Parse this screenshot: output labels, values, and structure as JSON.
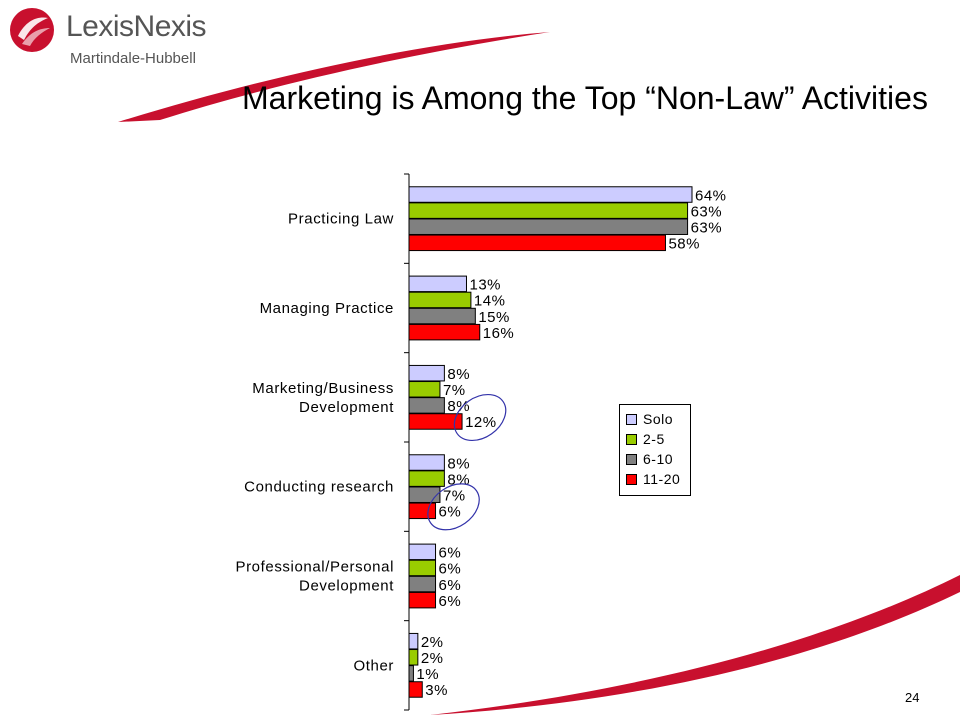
{
  "header": {
    "logo_name": "LexisNexis",
    "logo_sub": "Martindale-Hubbell",
    "logo_mark_icon": "lexisnexis-logo-icon",
    "title": "Marketing is Among the Top “Non-Law” Activities"
  },
  "colors": {
    "brand_red": "#c8102e",
    "solo": "#ccccff",
    "two_to_five": "#99cc00",
    "six_to_ten": "#808080",
    "eleven_to_twenty": "#ff0000",
    "highlight": "#3333aa"
  },
  "chart_data": {
    "type": "bar",
    "orientation": "horizontal",
    "categories": [
      "Practicing Law",
      "Managing Practice",
      "Marketing/Business Development",
      "Conducting research",
      "Professional/Personal Development",
      "Other"
    ],
    "category_labels": [
      [
        "Practicing Law"
      ],
      [
        "Managing Practice"
      ],
      [
        "Marketing/Business",
        "Development"
      ],
      [
        "Conducting research"
      ],
      [
        "Professional/Personal",
        "Development"
      ],
      [
        "Other"
      ]
    ],
    "series": [
      {
        "name": "Solo",
        "color": "#ccccff",
        "values": [
          64,
          13,
          8,
          8,
          6,
          2
        ]
      },
      {
        "name": "2-5",
        "color": "#99cc00",
        "values": [
          63,
          14,
          7,
          8,
          6,
          2
        ]
      },
      {
        "name": "6-10",
        "color": "#808080",
        "values": [
          63,
          15,
          8,
          7,
          6,
          1
        ]
      },
      {
        "name": "11-20",
        "color": "#ff0000",
        "values": [
          58,
          16,
          12,
          6,
          6,
          3
        ]
      }
    ],
    "value_suffix": "%",
    "xlim": [
      0,
      64
    ],
    "grid": false,
    "legend": "right",
    "highlighted": [
      {
        "category": "Marketing/Business Development",
        "series": "11-20"
      },
      {
        "category": "Conducting research",
        "series": "11-20"
      }
    ]
  },
  "footer": {
    "page_number": "24"
  }
}
